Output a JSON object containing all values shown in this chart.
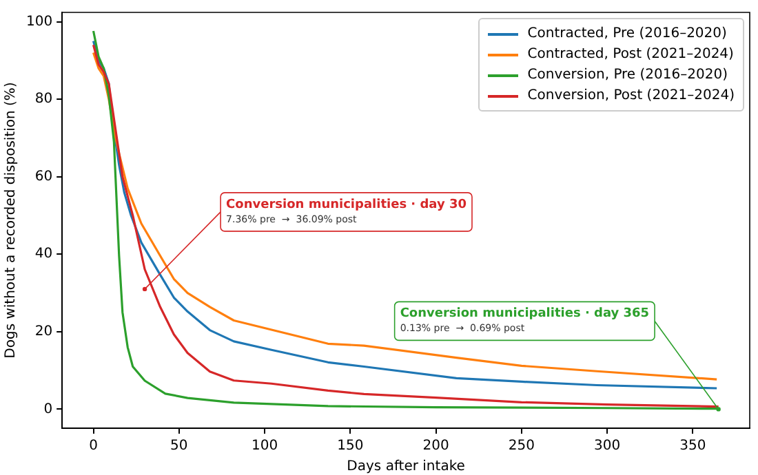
{
  "chart_data": {
    "type": "line",
    "xlabel": "Days after intake",
    "ylabel": "Dogs without a recorded disposition (%)",
    "xlim": [
      -18.25,
      383.25
    ],
    "ylim": [
      -4.9,
      102.4
    ],
    "xticks": [
      0,
      50,
      100,
      150,
      200,
      250,
      300,
      350
    ],
    "yticks": [
      0,
      20,
      40,
      60,
      80,
      100
    ],
    "grid": false,
    "legend": "top right",
    "marker": "none",
    "line_style": "solid",
    "series": [
      {
        "name": "Contracted, Pre (2016–2020)",
        "color": "#1f77b4",
        "x": [
          0,
          3,
          6,
          9,
          12,
          15,
          18,
          22,
          28,
          39,
          47,
          55,
          68,
          82,
          104,
          137,
          158,
          212,
          250,
          294,
          364
        ],
        "values": [
          95,
          90,
          88,
          84,
          72,
          63,
          56,
          50,
          43,
          34.7,
          28.8,
          25.2,
          20.4,
          17.5,
          15.3,
          12.1,
          11,
          8,
          7.1,
          6.2,
          5.4
        ]
      },
      {
        "name": "Contracted, Post (2021–2024)",
        "color": "#ff7f0e",
        "x": [
          0,
          3,
          6,
          9,
          12,
          15,
          20,
          28,
          39,
          47,
          55,
          68,
          82,
          104,
          137,
          158,
          212,
          250,
          294,
          364
        ],
        "values": [
          92,
          88,
          86,
          80,
          72,
          66,
          57,
          47.9,
          39.6,
          33.6,
          30,
          26.4,
          22.9,
          20.5,
          16.9,
          16.4,
          13.3,
          11.2,
          9.8,
          7.7
        ]
      },
      {
        "name": "Conversion, Pre (2016–2020)",
        "color": "#2ca02c",
        "x": [
          0,
          3,
          6,
          9,
          12,
          15,
          17,
          20,
          23,
          30,
          42,
          55,
          82,
          137,
          200,
          300,
          365
        ],
        "values": [
          97.6,
          91,
          88,
          81,
          69,
          39.6,
          25,
          16,
          11,
          7.36,
          4,
          2.9,
          1.7,
          0.8,
          0.5,
          0.3,
          0.13
        ]
      },
      {
        "name": "Conversion, Post (2021–2024)",
        "color": "#d62728",
        "x": [
          0,
          3,
          6,
          9,
          13,
          17,
          23,
          30,
          39,
          47,
          55,
          68,
          82,
          104,
          137,
          158,
          200,
          250,
          300,
          365
        ],
        "values": [
          94,
          89,
          87,
          84,
          72,
          60,
          50,
          36.09,
          26.4,
          19.3,
          14.5,
          9.7,
          7.4,
          6.6,
          4.8,
          3.9,
          3,
          1.8,
          1.2,
          0.69
        ]
      }
    ],
    "annotations": [
      {
        "text": "Conversion municipalities · day 30\n7.36% pre  →  36.09% post",
        "x": 30,
        "y": 31
      },
      {
        "text": "Conversion municipalities · day 365\n0.13% pre  →  0.69% post",
        "x": 365,
        "y": 0
      }
    ]
  }
}
